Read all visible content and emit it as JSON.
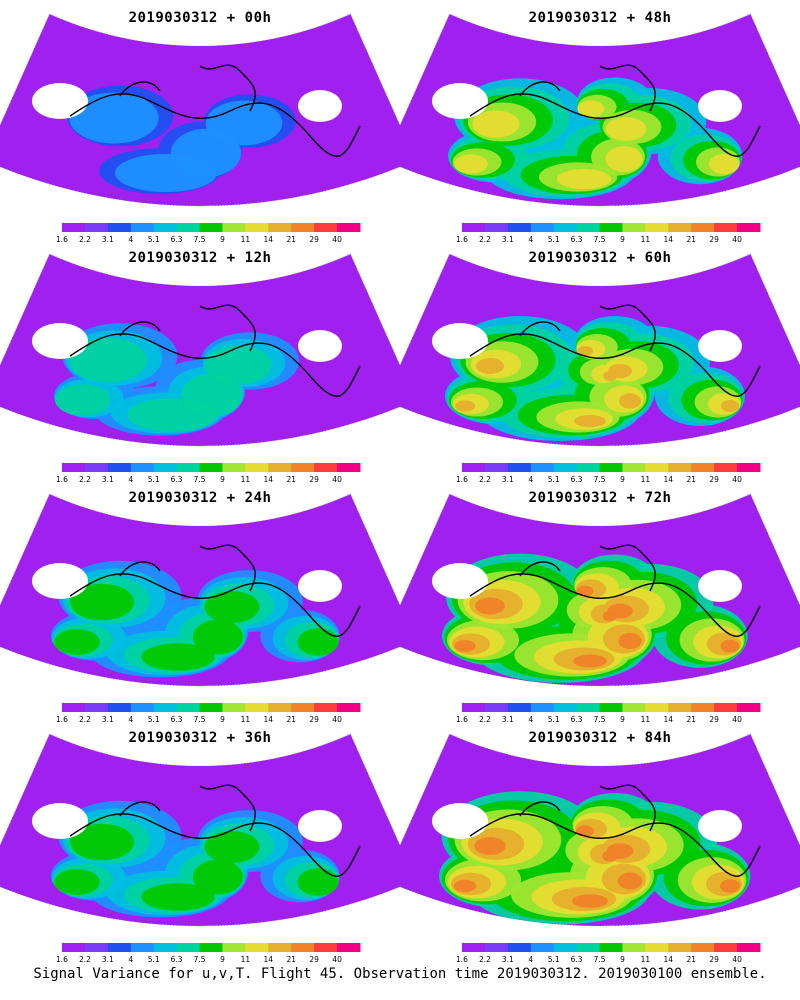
{
  "panels": [
    {
      "title": "2019030312 + 00h",
      "level": 1
    },
    {
      "title": "2019030312 + 48h",
      "level": 4
    },
    {
      "title": "2019030312 + 12h",
      "level": 2
    },
    {
      "title": "2019030312 + 60h",
      "level": 5
    },
    {
      "title": "2019030312 + 24h",
      "level": 3
    },
    {
      "title": "2019030312 + 72h",
      "level": 6
    },
    {
      "title": "2019030312 + 36h",
      "level": 3
    },
    {
      "title": "2019030312 + 84h",
      "level": 7
    }
  ],
  "colorbar": {
    "labels": [
      "1.6",
      "2.2",
      "3.1",
      "4",
      "5.1",
      "6.3",
      "7.5",
      "9",
      "11",
      "14",
      "21",
      "29",
      "40"
    ],
    "colors": [
      "#a020f0",
      "#7a3cf5",
      "#2050f0",
      "#1e90ff",
      "#00bfdf",
      "#00d2a0",
      "#00c800",
      "#a0e632",
      "#e6dc32",
      "#e6af2d",
      "#f08228",
      "#fa3c3c",
      "#f00082"
    ]
  },
  "caption": "Signal Variance for u,v,T. Flight 45. Observation time 2019030312. 2019030100 ensemble."
}
